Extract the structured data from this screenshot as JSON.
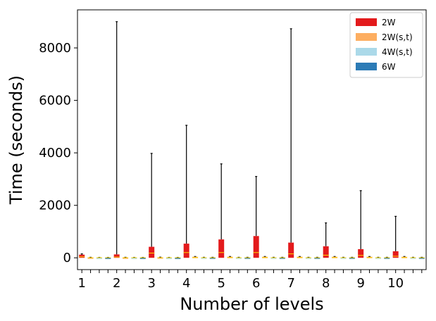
{
  "chart_data": {
    "type": "box",
    "xlabel": "Number of levels",
    "ylabel": "Time (seconds)",
    "ylim": [
      -450,
      9450
    ],
    "yticks": [
      0,
      2000,
      4000,
      6000,
      8000
    ],
    "categories": [
      "1",
      "2",
      "3",
      "4",
      "5",
      "6",
      "7",
      "8",
      "9",
      "10"
    ],
    "legend_position": "top-right",
    "grid": false,
    "series": [
      {
        "name": "2W",
        "color": "#e31a1c",
        "boxes": [
          {
            "q1": 0,
            "median": 40,
            "q3": 120,
            "whisker_high": 150
          },
          {
            "q1": 0,
            "median": 30,
            "q3": 130,
            "whisker_high": 9000
          },
          {
            "q1": 0,
            "median": 180,
            "q3": 420,
            "whisker_high": 3980
          },
          {
            "q1": 0,
            "median": 200,
            "q3": 540,
            "whisker_high": 5050
          },
          {
            "q1": 0,
            "median": 200,
            "q3": 700,
            "whisker_high": 3580
          },
          {
            "q1": 0,
            "median": 200,
            "q3": 830,
            "whisker_high": 3100
          },
          {
            "q1": 0,
            "median": 150,
            "q3": 580,
            "whisker_high": 8730
          },
          {
            "q1": 0,
            "median": 100,
            "q3": 440,
            "whisker_high": 1330
          },
          {
            "q1": 0,
            "median": 90,
            "q3": 330,
            "whisker_high": 2560
          },
          {
            "q1": 0,
            "median": 60,
            "q3": 250,
            "whisker_high": 1580
          }
        ]
      },
      {
        "name": "2W(s,t)",
        "color": "#fdae61",
        "boxes": [
          {
            "q1": 0,
            "median": 5,
            "q3": 15,
            "whisker_high": 20
          },
          {
            "q1": 0,
            "median": 5,
            "q3": 15,
            "whisker_high": 20
          },
          {
            "q1": 0,
            "median": 5,
            "q3": 20,
            "whisker_high": 25
          },
          {
            "q1": 0,
            "median": 10,
            "q3": 40,
            "whisker_high": 50
          },
          {
            "q1": 0,
            "median": 10,
            "q3": 40,
            "whisker_high": 50
          },
          {
            "q1": 0,
            "median": 10,
            "q3": 40,
            "whisker_high": 50
          },
          {
            "q1": 0,
            "median": 10,
            "q3": 40,
            "whisker_high": 50
          },
          {
            "q1": 0,
            "median": 10,
            "q3": 40,
            "whisker_high": 50
          },
          {
            "q1": 0,
            "median": 10,
            "q3": 40,
            "whisker_high": 50
          },
          {
            "q1": 0,
            "median": 10,
            "q3": 40,
            "whisker_high": 50
          }
        ]
      },
      {
        "name": "4W(s,t)",
        "color": "#abd9e9",
        "boxes": [
          {
            "q1": 0,
            "median": 5,
            "q3": 10,
            "whisker_high": 15
          },
          {
            "q1": 0,
            "median": 5,
            "q3": 10,
            "whisker_high": 15
          },
          {
            "q1": 0,
            "median": 5,
            "q3": 10,
            "whisker_high": 15
          },
          {
            "q1": 0,
            "median": 5,
            "q3": 15,
            "whisker_high": 20
          },
          {
            "q1": 0,
            "median": 5,
            "q3": 15,
            "whisker_high": 20
          },
          {
            "q1": 0,
            "median": 5,
            "q3": 15,
            "whisker_high": 20
          },
          {
            "q1": 0,
            "median": 5,
            "q3": 15,
            "whisker_high": 20
          },
          {
            "q1": 0,
            "median": 5,
            "q3": 15,
            "whisker_high": 20
          },
          {
            "q1": 0,
            "median": 5,
            "q3": 15,
            "whisker_high": 20
          },
          {
            "q1": 0,
            "median": 5,
            "q3": 15,
            "whisker_high": 20
          }
        ]
      },
      {
        "name": "6W",
        "color": "#2c7bb6",
        "boxes": [
          {
            "q1": 0,
            "median": 5,
            "q3": 10,
            "whisker_high": 15
          },
          {
            "q1": 0,
            "median": 5,
            "q3": 10,
            "whisker_high": 15
          },
          {
            "q1": 0,
            "median": 5,
            "q3": 10,
            "whisker_high": 15
          },
          {
            "q1": 0,
            "median": 5,
            "q3": 15,
            "whisker_high": 20
          },
          {
            "q1": 0,
            "median": 5,
            "q3": 15,
            "whisker_high": 20
          },
          {
            "q1": 0,
            "median": 5,
            "q3": 15,
            "whisker_high": 20
          },
          {
            "q1": 0,
            "median": 5,
            "q3": 15,
            "whisker_high": 20
          },
          {
            "q1": 0,
            "median": 5,
            "q3": 15,
            "whisker_high": 20
          },
          {
            "q1": 0,
            "median": 5,
            "q3": 15,
            "whisker_high": 20
          },
          {
            "q1": 0,
            "median": 5,
            "q3": 15,
            "whisker_high": 20
          }
        ]
      }
    ],
    "median_color": "#ffd700",
    "whisker_color": "#000000"
  }
}
